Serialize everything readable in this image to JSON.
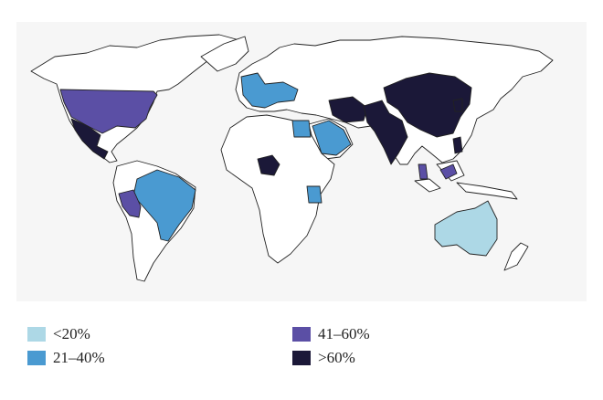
{
  "legend": [
    {
      "label": "<20%",
      "color": "#add8e6"
    },
    {
      "label": "21–40%",
      "color": "#4a9ad1"
    },
    {
      "label": "41–60%",
      "color": "#5b4fa5"
    },
    {
      "label": ">60%",
      "color": "#1b1838"
    }
  ]
}
